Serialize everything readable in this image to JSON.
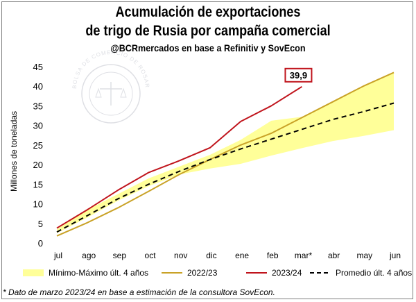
{
  "title_line1": "Acumulación de exportaciones",
  "title_line2": "de trigo de Rusia por campaña comercial",
  "subtitle": "@BCRmercados en base a Refinitiv y SovEcon",
  "footnote": "* Dato de marzo 2023/24 en base a estimación de la consultora SovEcon.",
  "watermark": "BOLSA DE COMERCIO DE ROSARIO",
  "chart_data": {
    "type": "line",
    "categories": [
      "jul",
      "ago",
      "sep",
      "oct",
      "nov",
      "dic",
      "ene",
      "feb",
      "mar*",
      "abr",
      "may",
      "jun"
    ],
    "ylabel": "Millones de toneladas",
    "xlabel": "",
    "ylim": [
      0,
      45
    ],
    "yticks": [
      0,
      5,
      10,
      15,
      20,
      25,
      30,
      35,
      40,
      45
    ],
    "grid": false,
    "legend_position": "bottom",
    "band": {
      "name": "Mínimo-Máximo últ. 4 años",
      "color": "#ffff99",
      "min": [
        2.5,
        6.5,
        10.8,
        14.5,
        17.5,
        19.0,
        20.2,
        22.3,
        24.2,
        26.0,
        27.3,
        28.8
      ],
      "max": [
        3.5,
        8.5,
        12.5,
        16.5,
        19.5,
        22.5,
        26.3,
        31.2,
        32.2,
        36.0,
        40.0,
        43.5
      ]
    },
    "series": [
      {
        "name": "2022/23",
        "color": "#c9a227",
        "dash": false,
        "values": [
          1.8,
          5.2,
          9.0,
          13.2,
          17.5,
          21.3,
          25.0,
          28.0,
          32.0,
          36.0,
          40.0,
          43.5
        ]
      },
      {
        "name": "2023/24",
        "color": "#c0141c",
        "dash": false,
        "values": [
          3.8,
          8.5,
          13.5,
          18.0,
          21.0,
          24.3,
          31.0,
          35.0,
          39.9,
          null,
          null,
          null
        ]
      },
      {
        "name": "Promedio últ. 4 años",
        "color": "#000000",
        "dash": true,
        "values": [
          2.8,
          7.0,
          11.3,
          15.0,
          18.3,
          21.3,
          24.0,
          26.5,
          29.0,
          31.5,
          33.5,
          35.7
        ]
      }
    ],
    "annotations": [
      {
        "series": "2023/24",
        "category": "mar*",
        "value": 39.9,
        "text": "39,9"
      }
    ]
  }
}
